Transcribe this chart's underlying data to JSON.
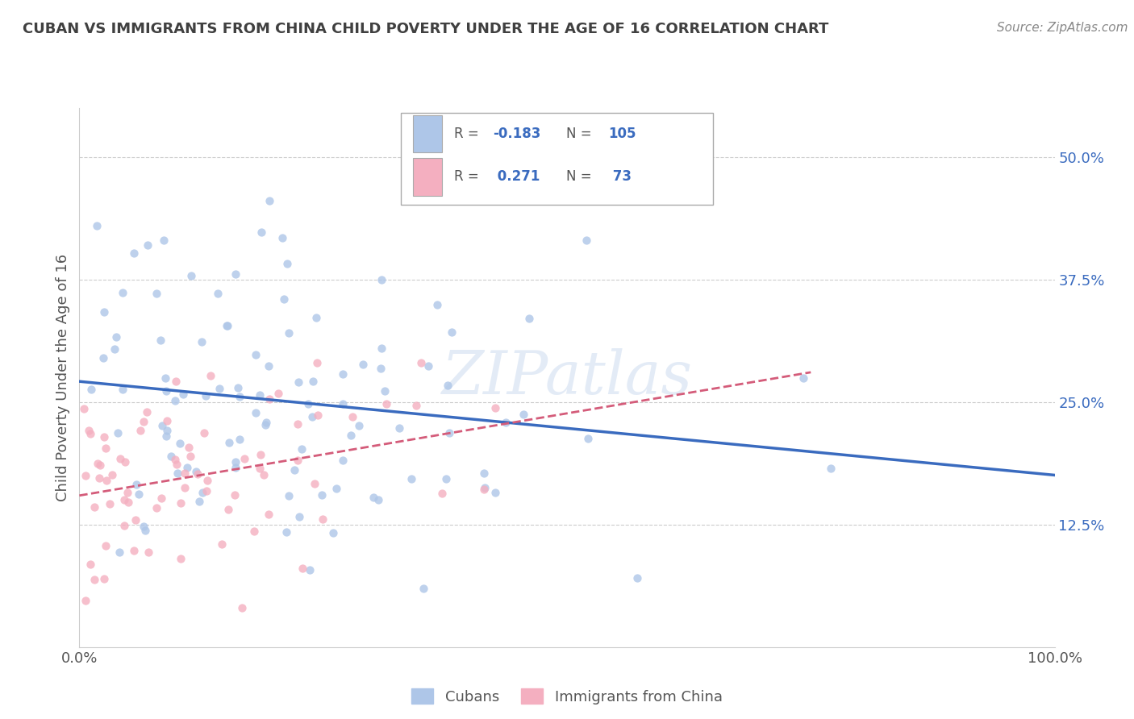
{
  "title": "CUBAN VS IMMIGRANTS FROM CHINA CHILD POVERTY UNDER THE AGE OF 16 CORRELATION CHART",
  "source": "Source: ZipAtlas.com",
  "ylabel": "Child Poverty Under the Age of 16",
  "ytick_labels": [
    "12.5%",
    "25.0%",
    "37.5%",
    "50.0%"
  ],
  "ytick_values": [
    0.125,
    0.25,
    0.375,
    0.5
  ],
  "xlim": [
    0.0,
    1.0
  ],
  "ylim": [
    0.0,
    0.55
  ],
  "cubans_color": "#aec6e8",
  "china_color": "#f4afc0",
  "cubans_line_color": "#3a6bbf",
  "china_line_color": "#d45c7a",
  "china_line_style": "--",
  "legend_label_cubans": "Cubans",
  "legend_label_china": "Immigrants from China",
  "R_cubans": -0.183,
  "N_cubans": 105,
  "R_china": 0.271,
  "N_china": 73,
  "watermark": "ZIPatlas",
  "background_color": "#ffffff",
  "grid_color": "#cccccc",
  "title_color": "#404040",
  "annotation_color": "#3a6bbf",
  "text_color": "#555555"
}
